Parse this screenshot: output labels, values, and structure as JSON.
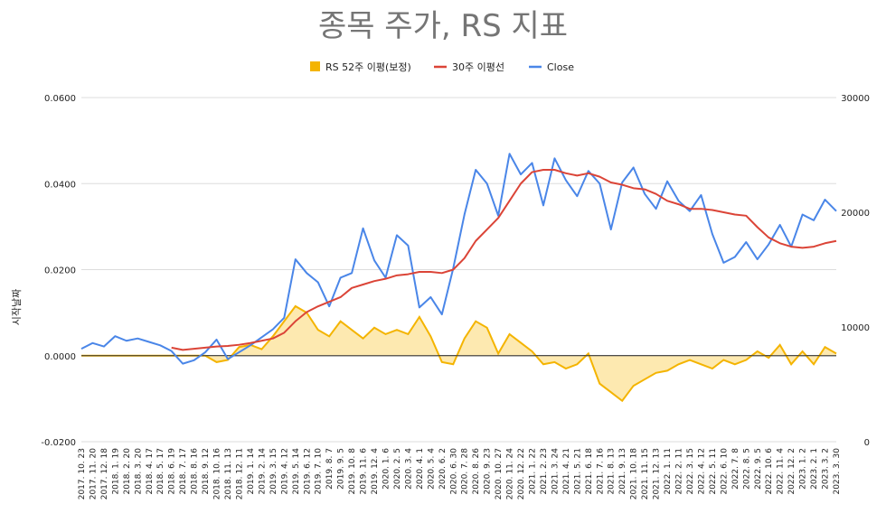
{
  "chart_data": {
    "type": "line",
    "title": "종목 주가, RS 지표",
    "ylabel_left": "시작날짜",
    "xlabel": "",
    "grid": true,
    "legend_position": "top",
    "colors": {
      "rs": "#f4b400",
      "rs_fill": "#fde9b0",
      "ma": "#db4437",
      "close": "#4a86e8"
    },
    "y_left": {
      "range": [
        -0.02,
        0.06
      ],
      "ticks": [
        "-0.0200",
        "0.0000",
        "0.0200",
        "0.0400",
        "0.0600"
      ],
      "tick_values": [
        -0.02,
        0.0,
        0.02,
        0.04,
        0.06
      ]
    },
    "y_right": {
      "range": [
        0,
        30000
      ],
      "ticks": [
        "0",
        "10000",
        "20000",
        "30000"
      ],
      "tick_values": [
        0,
        10000,
        20000,
        30000
      ]
    },
    "x_ticks": [
      "2017. 10. 23",
      "2017. 11. 20",
      "2017. 12. 18",
      "2018. 1. 19",
      "2018. 2. 20",
      "2018. 3. 20",
      "2018. 4. 17",
      "2018. 5. 17",
      "2018. 6. 19",
      "2018. 7. 17",
      "2018. 8. 16",
      "2018. 9. 12",
      "2018. 10. 16",
      "2018. 11. 13",
      "2018. 12. 11",
      "2019. 1. 14",
      "2019. 2. 14",
      "2019. 3. 15",
      "2019. 4. 12",
      "2019. 5. 14",
      "2019. 6. 12",
      "2019. 7. 10",
      "2019. 8. 7",
      "2019. 9. 5",
      "2019. 10. 8",
      "2019. 11. 6",
      "2019. 12. 4",
      "2020. 1. 6",
      "2020. 2. 5",
      "2020. 3. 4",
      "2020. 4. 1",
      "2020. 5. 4",
      "2020. 6. 2",
      "2020. 6. 30",
      "2020. 7. 28",
      "2020. 8. 26",
      "2020. 9. 23",
      "2020. 10. 27",
      "2020. 11. 24",
      "2020. 12. 22",
      "2021. 1. 22",
      "2021. 2. 23",
      "2021. 3. 24",
      "2021. 4. 21",
      "2021. 5. 21",
      "2021. 6. 18",
      "2021. 7. 16",
      "2021. 8. 13",
      "2021. 9. 13",
      "2021. 10. 18",
      "2021. 11. 15",
      "2021. 12. 13",
      "2022. 1. 11",
      "2022. 2. 11",
      "2022. 3. 15",
      "2022. 4. 12",
      "2022. 5. 11",
      "2022. 6. 10",
      "2022. 7. 8",
      "2022. 8. 5",
      "2022. 9. 5",
      "2022. 10. 6",
      "2022. 11. 4",
      "2022. 12. 2",
      "2023. 1. 2",
      "2023. 2. 1",
      "2023. 3. 2",
      "2023. 3. 30"
    ],
    "series": [
      {
        "name": "RS 52주 이평(보정)",
        "axis": "left",
        "style": "area",
        "values": [
          0,
          0,
          0,
          0,
          0,
          0,
          0,
          0,
          0,
          0,
          0,
          0,
          -0.0015,
          -0.001,
          0.002,
          0.0025,
          0.0015,
          0.0045,
          0.008,
          0.0115,
          0.01,
          0.006,
          0.0045,
          0.008,
          0.006,
          0.004,
          0.0065,
          0.005,
          0.006,
          0.005,
          0.009,
          0.0045,
          -0.0015,
          -0.002,
          0.004,
          0.008,
          0.0065,
          0.0005,
          0.005,
          0.003,
          0.001,
          -0.002,
          -0.0015,
          -0.003,
          -0.002,
          0.0005,
          -0.0065,
          -0.0085,
          -0.0105,
          -0.007,
          -0.0055,
          -0.004,
          -0.0035,
          -0.002,
          -0.001,
          -0.002,
          -0.003,
          -0.001,
          -0.002,
          -0.001,
          0.001,
          -0.0005,
          0.0025,
          -0.002,
          0.001,
          -0.002,
          0.002,
          0.0005
        ]
      },
      {
        "name": "30주 이평선",
        "axis": "right",
        "style": "line",
        "start_index": 8,
        "values": [
          null,
          null,
          null,
          null,
          null,
          null,
          null,
          null,
          8200,
          8000,
          8100,
          8200,
          8300,
          8350,
          8450,
          8600,
          8800,
          9000,
          9500,
          10500,
          11300,
          11800,
          12200,
          12600,
          13400,
          13700,
          14000,
          14200,
          14500,
          14600,
          14800,
          14800,
          14700,
          15000,
          16000,
          17500,
          18500,
          19500,
          21000,
          22500,
          23500,
          23700,
          23700,
          23400,
          23200,
          23400,
          23100,
          22600,
          22400,
          22100,
          22000,
          21600,
          21000,
          20700,
          20300,
          20300,
          20200,
          20000,
          19800,
          19700,
          18700,
          17800,
          17300,
          17000,
          16900,
          17000,
          17300,
          17500
        ]
      },
      {
        "name": "Close",
        "axis": "right",
        "style": "line",
        "values": [
          8100,
          8600,
          8300,
          9200,
          8800,
          9000,
          8700,
          8400,
          7900,
          6800,
          7100,
          7800,
          8900,
          7200,
          7800,
          8400,
          9100,
          9800,
          10800,
          15900,
          14700,
          13900,
          11800,
          14300,
          14700,
          18600,
          15800,
          14300,
          18000,
          17100,
          11700,
          12600,
          11100,
          15100,
          19800,
          23700,
          22500,
          19700,
          25100,
          23300,
          24300,
          20600,
          24700,
          22800,
          21400,
          23600,
          22500,
          18500,
          22600,
          23900,
          21600,
          20300,
          22700,
          21000,
          20100,
          21500,
          18100,
          15600,
          16100,
          17400,
          15900,
          17200,
          18900,
          17000,
          19800,
          19300,
          21100,
          20100
        ]
      }
    ]
  }
}
